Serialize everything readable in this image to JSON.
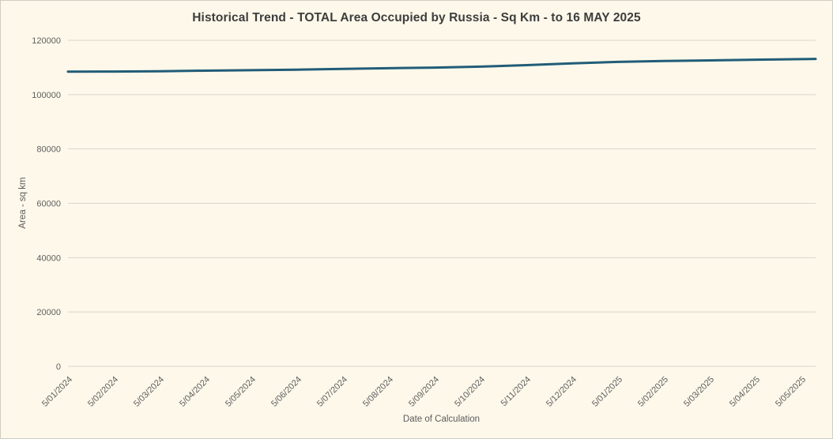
{
  "chart_data": {
    "type": "line",
    "title": "Historical Trend - TOTAL Area Occupied by Russia - Sq Km - to 16 MAY 2025",
    "xlabel": "Date of Calculation",
    "ylabel": "Area - sq km",
    "ylim": [
      0,
      120000
    ],
    "yticks": [
      0,
      20000,
      40000,
      60000,
      80000,
      100000,
      120000
    ],
    "grid": "horizontal",
    "legend": "none",
    "line_color": "#215c78",
    "categories": [
      "5/01/2024",
      "5/02/2024",
      "5/03/2024",
      "5/04/2024",
      "5/05/2024",
      "5/06/2024",
      "5/07/2024",
      "5/08/2024",
      "5/09/2024",
      "5/10/2024",
      "5/11/2024",
      "5/12/2024",
      "5/01/2025",
      "5/02/2025",
      "5/03/2025",
      "5/04/2025",
      "5/05/2025"
    ],
    "values": [
      108450,
      108500,
      108600,
      108800,
      109000,
      109200,
      109450,
      109700,
      109950,
      110300,
      110850,
      111500,
      112050,
      112400,
      112600,
      112850,
      113050
    ],
    "final_point": {
      "date_label": "16 MAY 2025",
      "value": 113150
    }
  },
  "colors": {
    "background": "#fdf8ea",
    "gridline": "#d9d5cb",
    "title_text": "#3d3d3d",
    "tick_text": "#5f5f5f",
    "border": "#cfccc3"
  }
}
